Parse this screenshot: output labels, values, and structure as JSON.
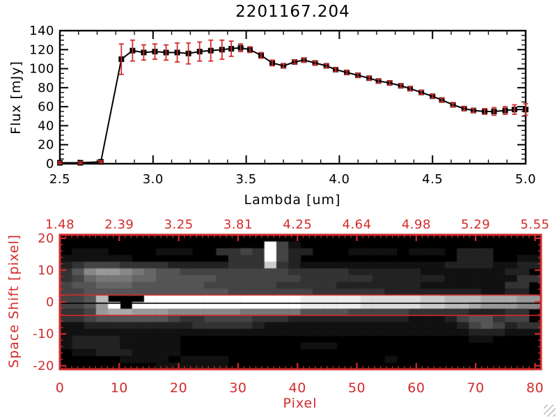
{
  "window": {
    "background": "#ffffff"
  },
  "colors": {
    "accent_red": "#d22b2b",
    "frame_black": "#000000",
    "grip_gray": "#b9b9b9"
  },
  "spectrum_panel": {
    "title": "2201167.204",
    "xlabel": "Lambda [um]",
    "ylabel": "Flux [mJy]",
    "x_tick_labels": [
      "2.5",
      "3.0",
      "3.5",
      "4.0",
      "4.5",
      "5.0"
    ],
    "y_tick_labels": [
      "0",
      "20",
      "40",
      "60",
      "80",
      "100",
      "120",
      "140"
    ]
  },
  "image_panel": {
    "xlabel": "Pixel",
    "ylabel": "Space Shift [pixel]",
    "bottom_tick_labels": [
      "0",
      "10",
      "20",
      "30",
      "40",
      "50",
      "60",
      "70",
      "80"
    ],
    "top_tick_labels": [
      "1.48",
      "2.39",
      "3.25",
      "3.81",
      "4.25",
      "4.64",
      "4.98",
      "5.29",
      "5.55"
    ],
    "y_tick_labels": [
      "20",
      "10",
      "0",
      "-10",
      "-20"
    ]
  },
  "chart_data": [
    {
      "type": "line",
      "title": "2201167.204",
      "xlabel": "Lambda [um]",
      "ylabel": "Flux [mJy]",
      "xlim": [
        2.5,
        5.0
      ],
      "ylim": [
        0,
        140
      ],
      "x_major_ticks": [
        2.5,
        3.0,
        3.5,
        4.0,
        4.5,
        5.0
      ],
      "x_minor_step": 0.1,
      "y_major_ticks": [
        0,
        20,
        40,
        60,
        80,
        100,
        120,
        140
      ],
      "y_minor_step": 5,
      "grid": false,
      "legend": "none",
      "marker": "filled-square",
      "marker_color": "#000000",
      "line_color": "#000000",
      "errorbar_color": "#d22b2b",
      "series": [
        {
          "name": "spectrum-flux",
          "x": [
            2.5,
            2.61,
            2.72,
            2.83,
            2.89,
            2.95,
            3.01,
            3.07,
            3.13,
            3.19,
            3.25,
            3.31,
            3.37,
            3.42,
            3.47,
            3.52,
            3.58,
            3.64,
            3.7,
            3.76,
            3.81,
            3.87,
            3.93,
            3.98,
            4.04,
            4.1,
            4.16,
            4.21,
            4.27,
            4.33,
            4.38,
            4.44,
            4.5,
            4.55,
            4.61,
            4.67,
            4.72,
            4.78,
            4.83,
            4.89,
            4.94,
            5.0
          ],
          "y": [
            1,
            1,
            2,
            110,
            119,
            117,
            118,
            117,
            117,
            116,
            118,
            119,
            120,
            121,
            122,
            120,
            114,
            106,
            103,
            107,
            109,
            106,
            103,
            99,
            96,
            93,
            90,
            87,
            85,
            82,
            79,
            75,
            71,
            67,
            62,
            58,
            56,
            55,
            55,
            56,
            57,
            57
          ],
          "yerr": [
            1,
            1,
            1,
            16,
            11,
            8,
            8,
            8,
            10,
            11,
            10,
            11,
            10,
            8,
            4,
            3,
            3,
            3,
            2,
            2,
            2,
            2,
            2,
            2,
            2,
            2,
            2,
            2,
            2,
            2,
            2,
            2,
            2,
            2,
            2,
            2,
            2,
            3,
            4,
            4,
            5,
            6
          ]
        }
      ]
    },
    {
      "type": "heatmap",
      "xlabel": "Pixel",
      "ylabel": "Space Shift [pixel]",
      "xlim": [
        0,
        81
      ],
      "ylim": [
        -21.1,
        21.1
      ],
      "x_major_ticks": [
        0,
        10,
        20,
        30,
        40,
        50,
        60,
        70,
        80
      ],
      "x_minor_step": 1,
      "y_major_ticks": [
        -20,
        -10,
        0,
        10,
        20
      ],
      "y_minor_step": 2,
      "top_axis": {
        "label_values": [
          1.48,
          2.39,
          3.25,
          3.81,
          4.25,
          4.64,
          4.98,
          5.29,
          5.55
        ],
        "positions": [
          0,
          10,
          20,
          30,
          40,
          50,
          60,
          70,
          80
        ]
      },
      "frame_color": "#d22b2b",
      "colormap": "grayscale-hex-0-15",
      "overlay_lines": [
        {
          "shift": 2.2,
          "color": "#d22b2b"
        },
        {
          "shift": -4.2,
          "color": "#d22b2b"
        },
        {
          "shift": -0.4,
          "color": "#000000"
        }
      ],
      "grid_cols": 40,
      "grid_rows": 20,
      "rows": [
        "0000000000000000000000000000000000000000",
        "00000000000000000f4100000000000000000000",
        "01110000111003343f422000111101110 2220000",
        "11111100000000333f4200000000000002220011",
        "23444333322222333c3211111111111122221122",
        "3589987655444444444333332222221111111 22",
        "3467776655555444444433333322222211111133",
        "4556665555554444443333322222221111111 33",
        "4455555555555544444443333332222222211 22",
        "445b000fffffffffffffeeeeedddddccbbbaaa99",
        "4459f0ffffffffffffffeeeeedddddccbba99988",
        "3349aa999888888777775555444443333322233 ",
        "3345555554334444333222222222211124553 44",
        "1122222222233333211111111111111112454233",
        "1111111111111111111111111111111111222111",
        "1222211111000000000000000000000000110000",
        "1222211111000000000011100000000000000000",
        "0112221111000000000000000000000000000000",
        "0000011110111100000000000001000000000000",
        "0000000011111100000000000000000000000000"
      ]
    }
  ]
}
